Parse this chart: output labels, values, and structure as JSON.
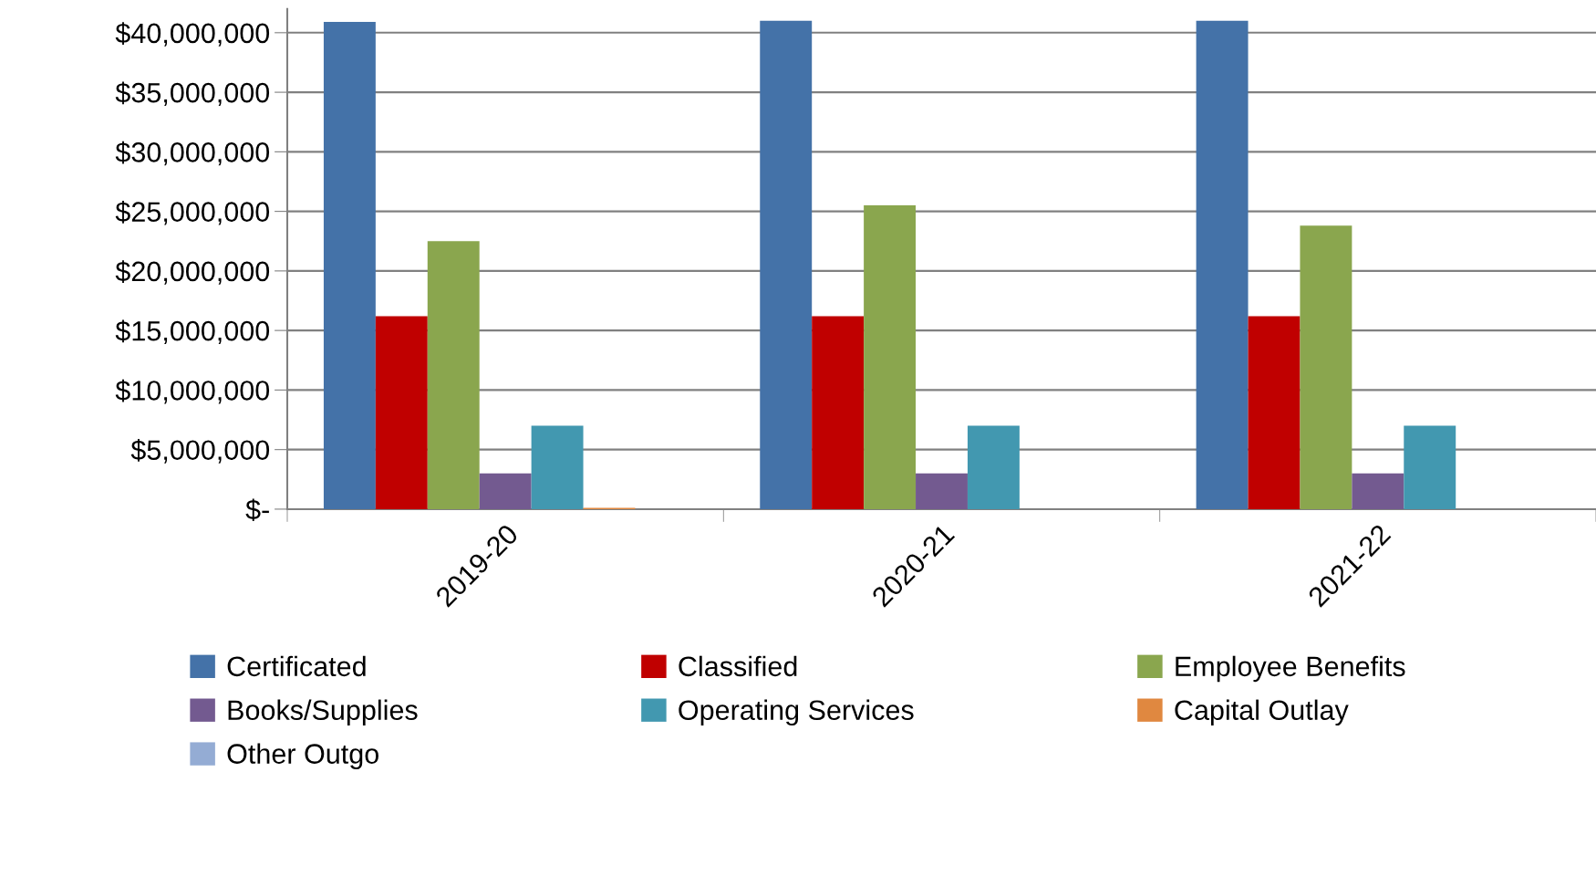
{
  "chart_data": {
    "type": "bar",
    "categories": [
      "2019-20",
      "2020-21",
      "2021-22"
    ],
    "series": [
      {
        "name": "Certificated",
        "color": "#4472a8",
        "values": [
          40900000,
          41000000,
          41000000
        ]
      },
      {
        "name": "Classified",
        "color": "#c00000",
        "values": [
          16200000,
          16200000,
          16200000
        ]
      },
      {
        "name": "Employee Benefits",
        "color": "#8aa64e",
        "values": [
          22500000,
          25500000,
          23800000
        ]
      },
      {
        "name": "Books/Supplies",
        "color": "#735a90",
        "values": [
          3000000,
          3000000,
          3000000
        ]
      },
      {
        "name": "Operating Services",
        "color": "#4298b0",
        "values": [
          7000000,
          7000000,
          7000000
        ]
      },
      {
        "name": "Capital Outlay",
        "color": "#e08840",
        "values": [
          100000,
          0,
          0
        ]
      },
      {
        "name": "Other Outgo",
        "color": "#94acd4",
        "values": [
          0,
          0,
          0
        ]
      }
    ],
    "ylim": [
      0,
      42000000
    ],
    "yticks": [
      {
        "value": 0,
        "label": "$-"
      },
      {
        "value": 5000000,
        "label": "$5,000,000"
      },
      {
        "value": 10000000,
        "label": "$10,000,000"
      },
      {
        "value": 15000000,
        "label": "$15,000,000"
      },
      {
        "value": 20000000,
        "label": "$20,000,000"
      },
      {
        "value": 25000000,
        "label": "$25,000,000"
      },
      {
        "value": 30000000,
        "label": "$30,000,000"
      },
      {
        "value": 35000000,
        "label": "$35,000,000"
      },
      {
        "value": 40000000,
        "label": "$40,000,000"
      }
    ],
    "grid": "y",
    "legend": "bottom"
  }
}
